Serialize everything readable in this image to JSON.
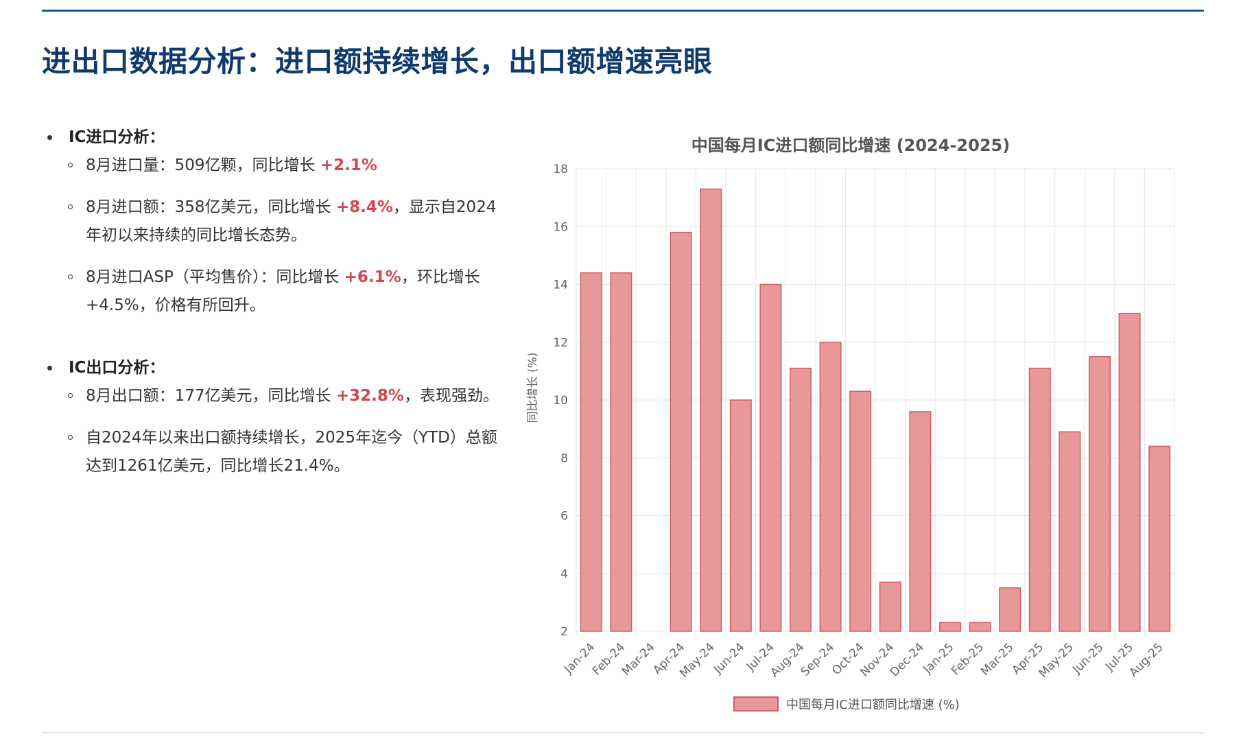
{
  "page": {
    "title": "进出口数据分析：进口额持续增长，出口额增速亮眼"
  },
  "left": {
    "import": {
      "heading": "IC进口分析：",
      "items": [
        {
          "pre": "8月进口量：509亿颗，同比增长 ",
          "hl": "+2.1%",
          "post": ""
        },
        {
          "pre": "8月进口额：358亿美元，同比增长 ",
          "hl": "+8.4%",
          "post": "，显示自2024年初以来持续的同比增长态势。"
        },
        {
          "pre": "8月进口ASP（平均售价）：同比增长 ",
          "hl": "+6.1%",
          "post": "，环比增长+4.5%，价格有所回升。"
        }
      ]
    },
    "export": {
      "heading": "IC出口分析：",
      "items": [
        {
          "pre": "8月出口额：177亿美元，同比增长 ",
          "hl": "+32.8%",
          "post": "，表现强劲。"
        },
        {
          "pre": "自2024年以来出口额持续增长，2025年迄今（YTD）总额达到1261亿美元，同比增长21.4%。",
          "hl": "",
          "post": ""
        }
      ]
    }
  },
  "colors": {
    "title": "#0f3a6e",
    "accent": "#1d5a93",
    "highlight": "#d0474d",
    "bar_fill": "#e89898",
    "bar_stroke": "#d25f63",
    "grid": "#e5e5e5"
  },
  "chart_data": {
    "type": "bar",
    "title": "中国每月IC进口额同比增速 (2024-2025)",
    "ylabel": "同比增长 (%)",
    "xlabel": "",
    "categories": [
      "Jan-24",
      "Feb-24",
      "Mar-24",
      "Apr-24",
      "May-24",
      "Jun-24",
      "Jul-24",
      "Aug-24",
      "Sep-24",
      "Oct-24",
      "Nov-24",
      "Dec-24",
      "Jan-25",
      "Feb-25",
      "Mar-25",
      "Apr-25",
      "May-25",
      "Jun-25",
      "Jul-25",
      "Aug-25"
    ],
    "series": [
      {
        "name": "中国每月IC进口额同比增速 (%)",
        "values": [
          14.4,
          14.4,
          2.0,
          15.8,
          17.3,
          10.0,
          14.0,
          11.1,
          12.0,
          10.3,
          3.7,
          9.6,
          2.3,
          2.3,
          3.5,
          11.1,
          8.9,
          11.5,
          13.0,
          8.4
        ]
      }
    ],
    "ylim": [
      2,
      18
    ],
    "yticks": [
      2,
      4,
      6,
      8,
      10,
      12,
      14,
      16,
      18
    ],
    "grid": true,
    "legend": "bottom"
  }
}
